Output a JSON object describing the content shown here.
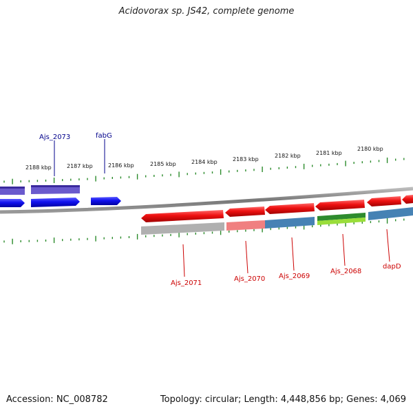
{
  "title": "Acidovorax sp. JS42, complete genome",
  "footer": {
    "accession": "Accession: NC_008782",
    "summary": "Topology: circular; Length: 4,448,856 bp; Genes: 4,069"
  },
  "colors": {
    "backbone": "#8a8a8a",
    "tick": "#2a8a2a",
    "forward_gene": "#1a1ae8",
    "forward_cog": "#6a5acd",
    "reverse_gene": "#e81a1a",
    "reverse_label": "#cc0000",
    "forward_label": "#00008b"
  },
  "ruler": {
    "unit": "kbp",
    "labels": [
      "2188 kbp",
      "2187 kbp",
      "2186 kbp",
      "2185 kbp",
      "2184 kbp",
      "2183 kbp",
      "2182 kbp",
      "2181 kbp",
      "2180 kbp"
    ]
  },
  "genes": {
    "forward": [
      {
        "label": "Ajs_2073",
        "cog_color": "#6a5acd"
      },
      {
        "label": "fabG",
        "cog_color": null
      }
    ],
    "reverse": [
      {
        "label": "Ajs_2071",
        "cog_color": "#b0b0b0"
      },
      {
        "label": "Ajs_2070",
        "cog_color": "#f08080"
      },
      {
        "label": "Ajs_2069",
        "cog_color": "#4682b4"
      },
      {
        "label": "Ajs_2068",
        "cog_color": "#7fdd2a"
      },
      {
        "label": "dapD",
        "cog_color": "#4682b4"
      }
    ]
  }
}
